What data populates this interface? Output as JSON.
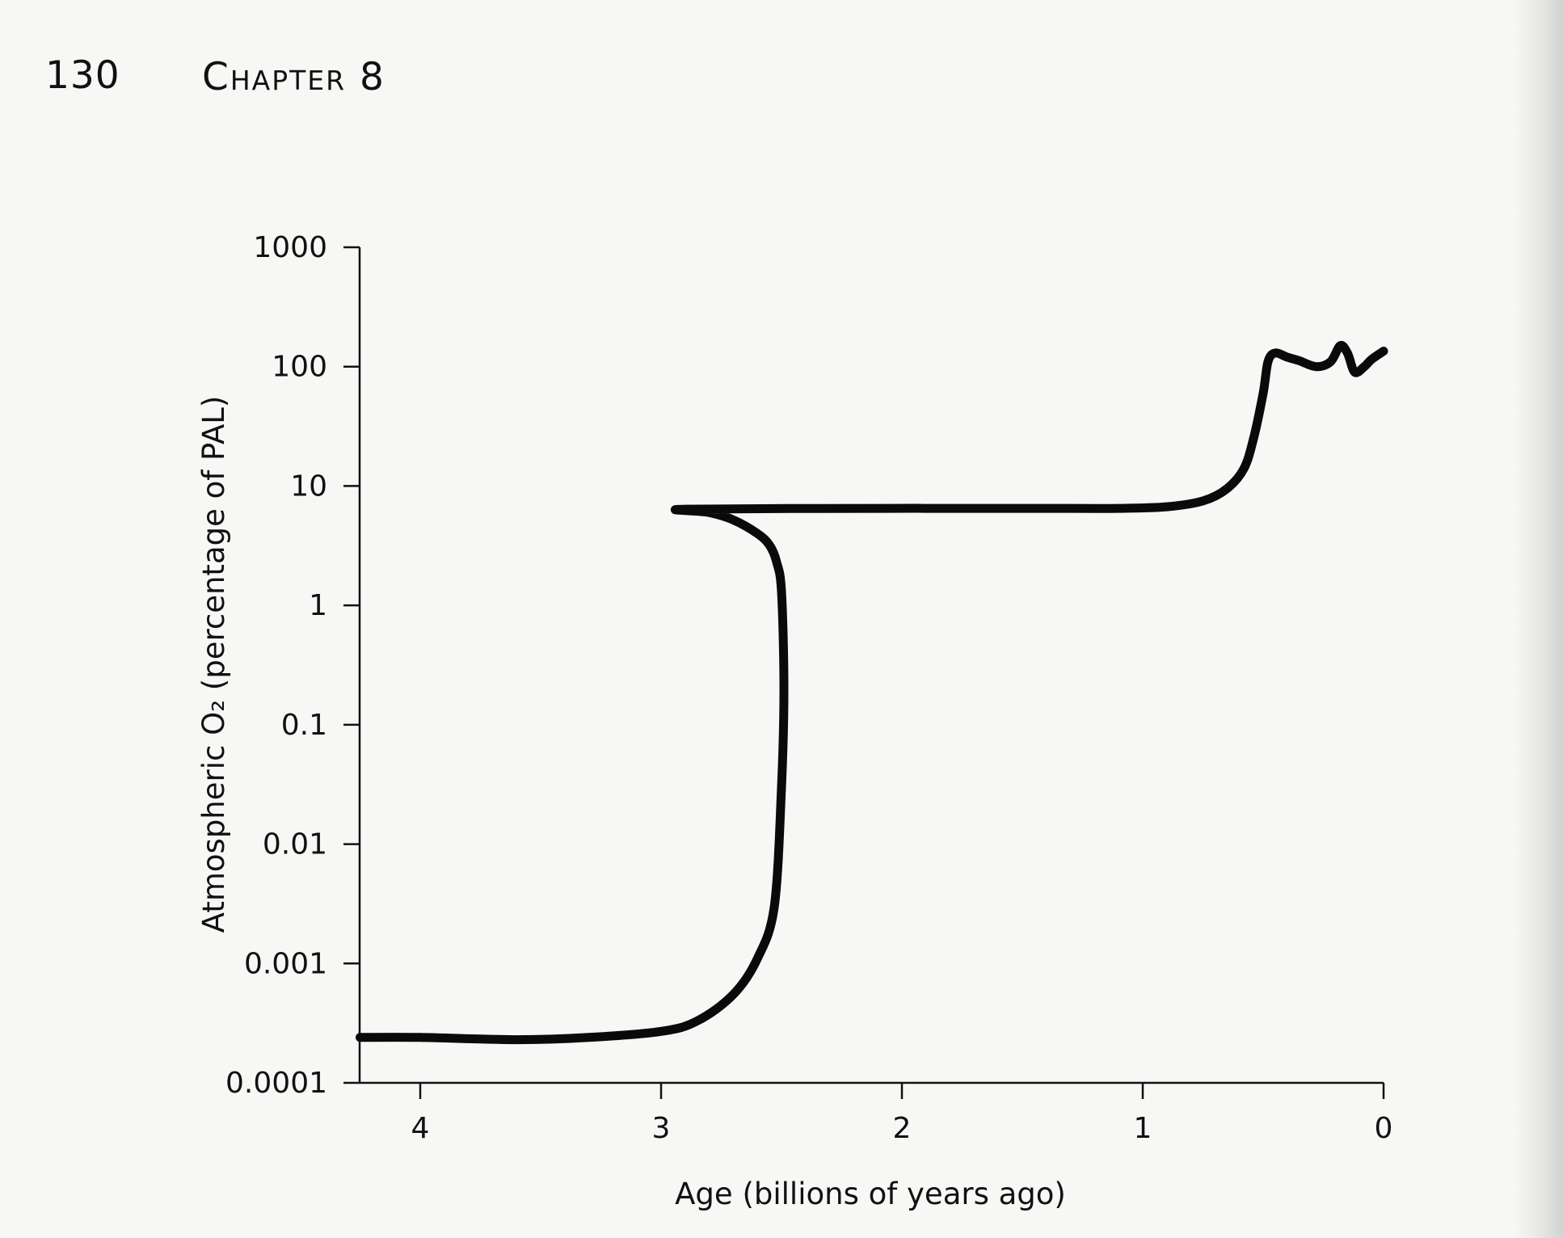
{
  "page_header": {
    "page_number": "130",
    "chapter": "Chapter 8"
  },
  "chart_data": {
    "type": "line",
    "title": "",
    "xlabel": "Age (billions of years ago)",
    "ylabel": "Atmospheric O₂ (percentage of PAL)",
    "y_scale": "log",
    "x_reversed": true,
    "xlim": [
      4.25,
      0.0
    ],
    "ylim": [
      0.0001,
      1000
    ],
    "grid": false,
    "x_ticks": [
      4,
      3,
      2,
      1,
      0
    ],
    "x_tick_labels": [
      "4",
      "3",
      "2",
      "1",
      "0"
    ],
    "y_ticks": [
      0.0001,
      0.001,
      0.01,
      0.1,
      1,
      10,
      100,
      1000
    ],
    "y_tick_labels": [
      "0.0001",
      "0.001",
      "0.01",
      "0.1",
      "1",
      "10",
      "100",
      "1000"
    ],
    "line_color": "#0a0a0a",
    "series": [
      {
        "x": [
          4.25,
          4.0,
          3.6,
          3.3,
          3.0,
          2.85,
          2.7,
          2.6,
          2.53,
          2.5,
          2.49,
          2.5,
          2.52,
          2.55,
          2.6,
          2.7,
          2.8,
          2.9,
          2.05,
          1.9,
          1.7,
          1.4,
          1.1,
          0.9,
          0.75,
          0.65,
          0.58,
          0.54,
          0.5,
          0.48,
          0.45,
          0.4,
          0.35,
          0.28,
          0.22,
          0.18,
          0.15,
          0.12,
          0.08,
          0.05,
          0.0
        ],
        "y": [
          0.00024,
          0.00024,
          0.00023,
          0.00024,
          0.00027,
          0.00033,
          0.00055,
          0.0011,
          0.003,
          0.03,
          0.2,
          1.3,
          2.3,
          3.2,
          4.0,
          5.2,
          6.0,
          6.4,
          6.5,
          6.5,
          6.5,
          6.5,
          6.5,
          6.7,
          7.5,
          9.5,
          14,
          25,
          60,
          110,
          130,
          120,
          112,
          100,
          110,
          150,
          130,
          90,
          100,
          115,
          135
        ]
      }
    ]
  }
}
